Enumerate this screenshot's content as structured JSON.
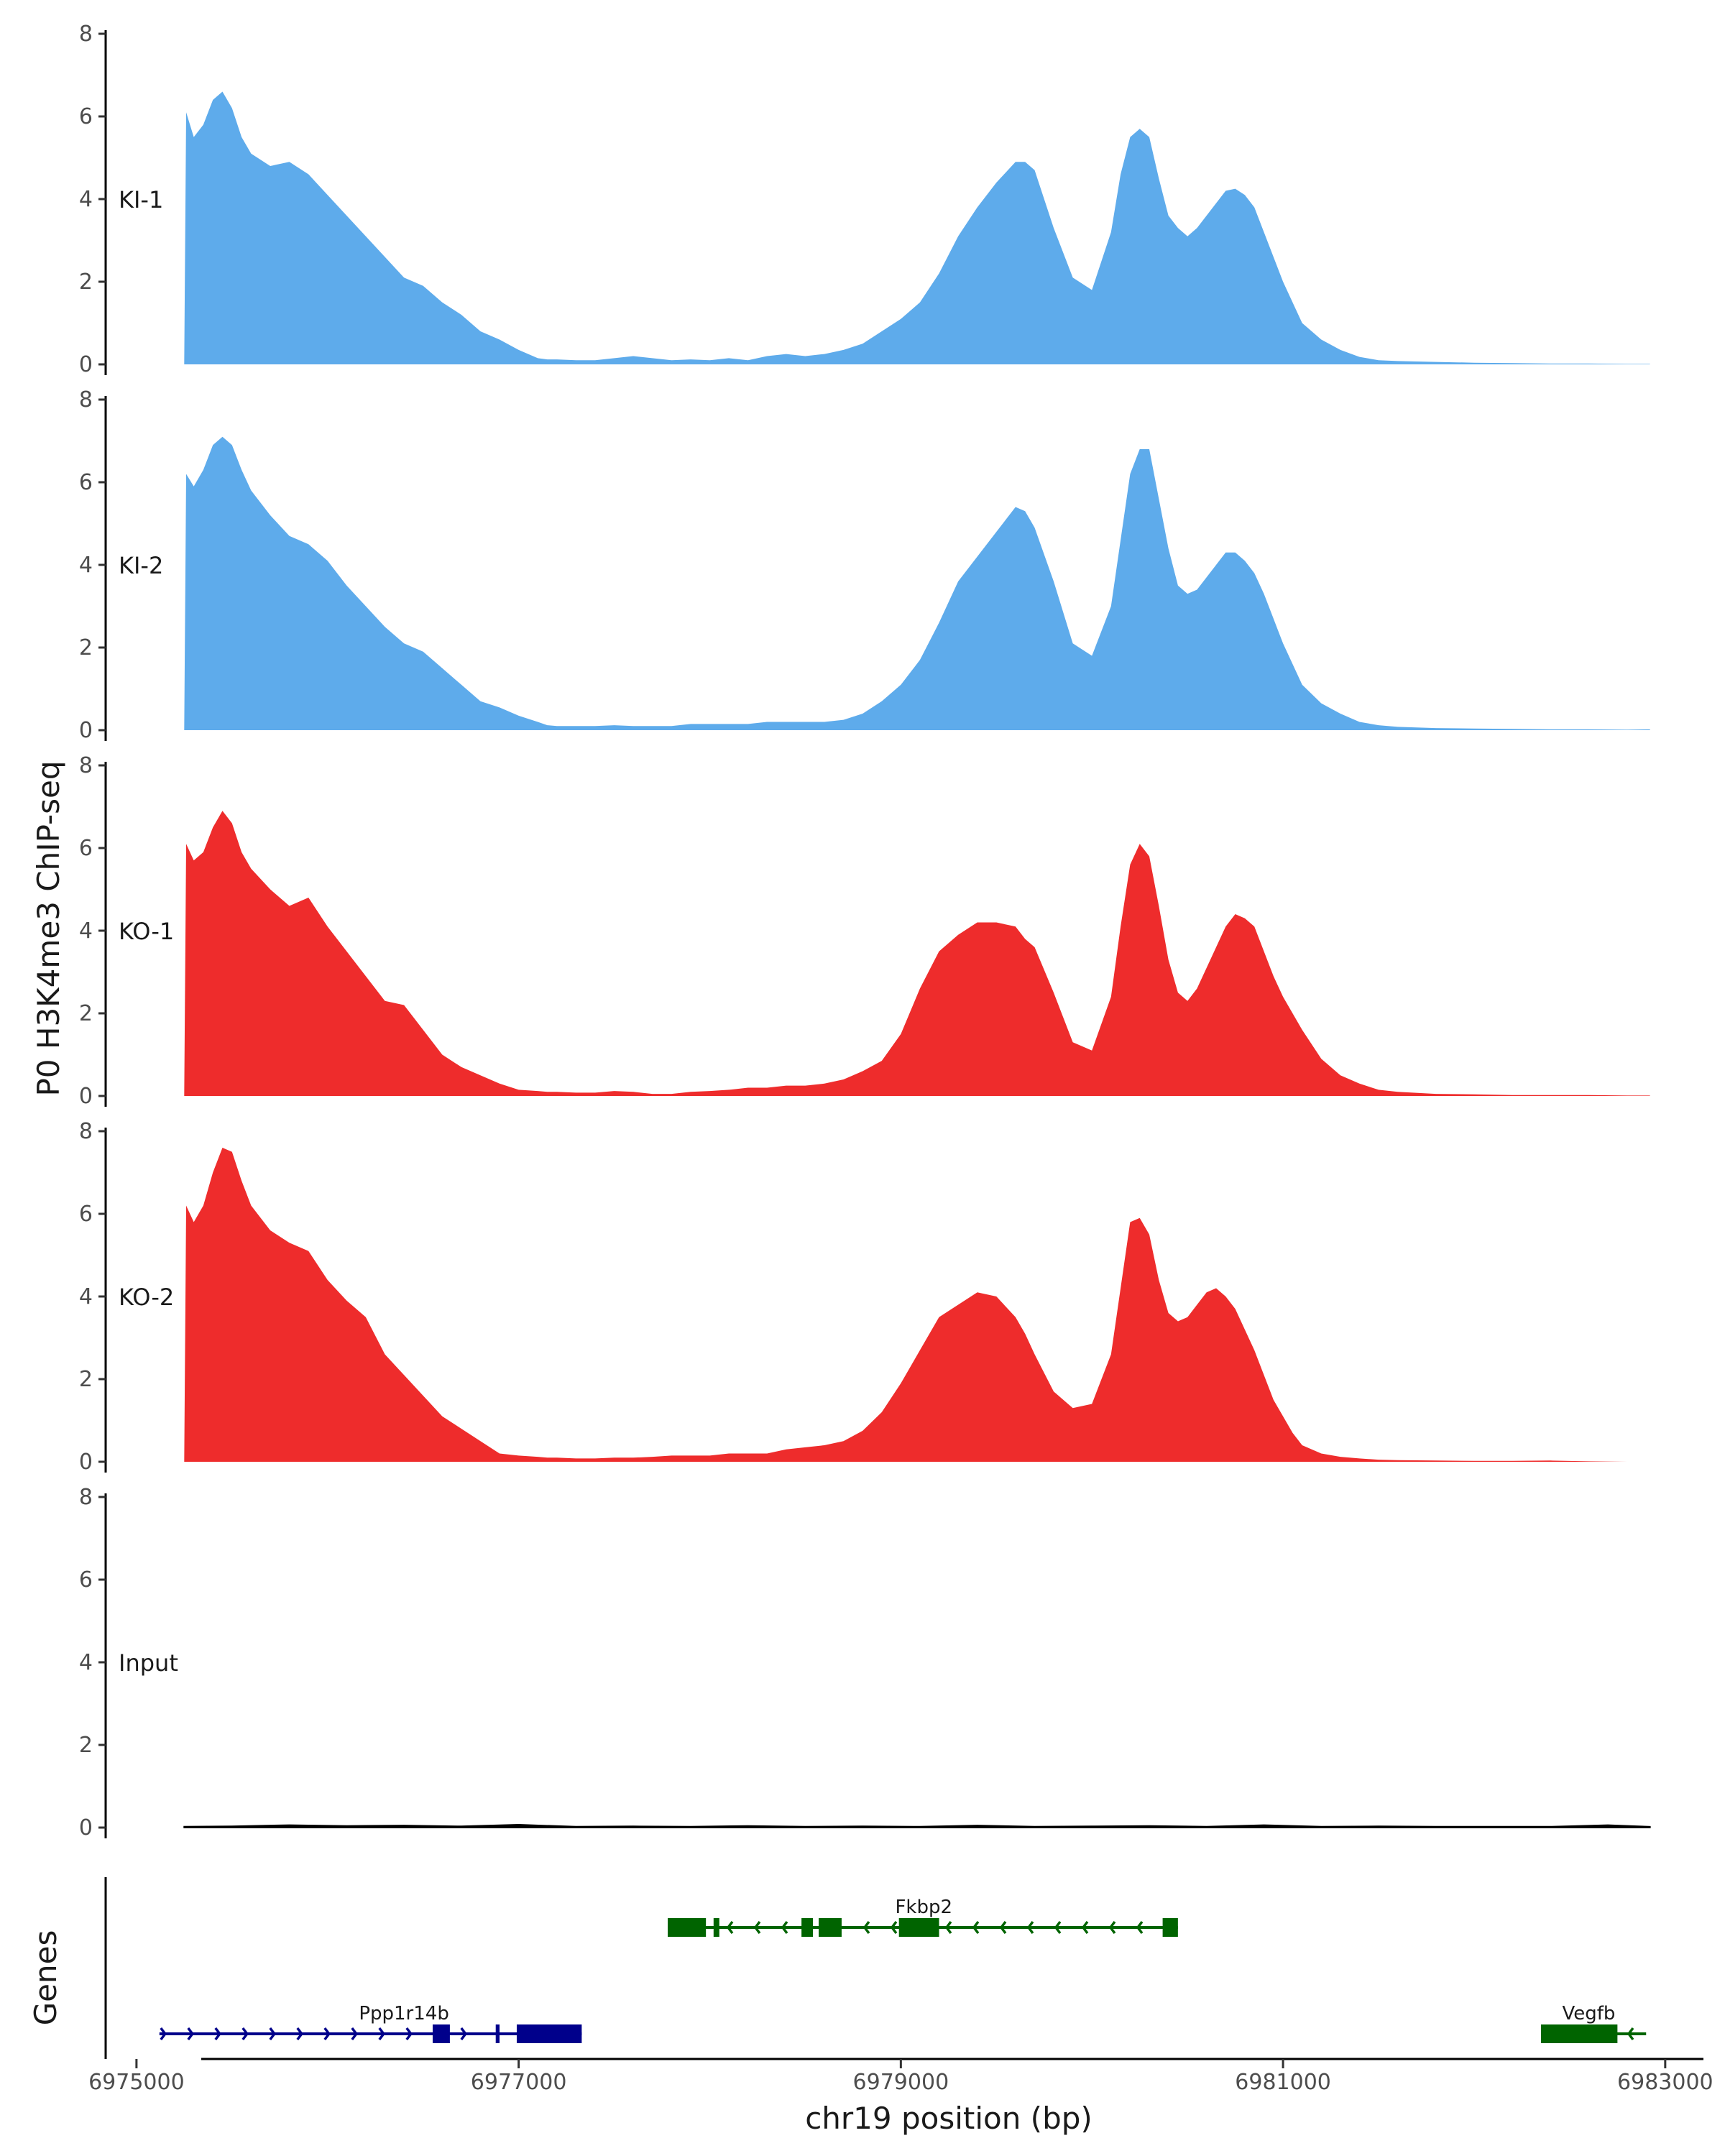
{
  "chart_data": {
    "type": "area",
    "title": "",
    "ylabel": "P0 H3K4me3 ChIP-seq",
    "xlabel": "chr19 position (bp)",
    "xlim": [
      6974850,
      6983200
    ],
    "ylim": [
      0,
      8
    ],
    "y_ticks": [
      "0",
      "2",
      "4",
      "6",
      "8"
    ],
    "x_ticks": [
      {
        "value": 6975000,
        "label": "6975000"
      },
      {
        "value": 6977000,
        "label": "6977000"
      },
      {
        "value": 6979000,
        "label": "6979000"
      },
      {
        "value": 6981000,
        "label": "6981000"
      },
      {
        "value": 6983000,
        "label": "6983000"
      }
    ],
    "grid": false,
    "legend": "none",
    "series": [
      {
        "name": "KI-1",
        "color": "#5EABEB",
        "x": [
          6975250,
          6975260,
          6975300,
          6975350,
          6975400,
          6975450,
          6975500,
          6975550,
          6975600,
          6975700,
          6975800,
          6975900,
          6976000,
          6976100,
          6976200,
          6976300,
          6976400,
          6976500,
          6976600,
          6976700,
          6976800,
          6976900,
          6977000,
          6977100,
          6977150,
          6977200,
          6977300,
          6977400,
          6977500,
          6977600,
          6977700,
          6977800,
          6977900,
          6978000,
          6978100,
          6978200,
          6978300,
          6978400,
          6978500,
          6978600,
          6978700,
          6978800,
          6978900,
          6979000,
          6979100,
          6979200,
          6979300,
          6979400,
          6979500,
          6979600,
          6979650,
          6979700,
          6979800,
          6979900,
          6980000,
          6980100,
          6980150,
          6980200,
          6980250,
          6980300,
          6980350,
          6980400,
          6980450,
          6980500,
          6980550,
          6980600,
          6980650,
          6980700,
          6980750,
          6980800,
          6980850,
          6980900,
          6980950,
          6981000,
          6981050,
          6981100,
          6981200,
          6981300,
          6981400,
          6981500,
          6981600,
          6981800,
          6982000,
          6982200,
          6982400,
          6982600,
          6982800,
          6982920
        ],
        "values": [
          0,
          6.1,
          5.5,
          5.8,
          6.4,
          6.6,
          6.2,
          5.5,
          5.1,
          4.8,
          4.9,
          4.6,
          4.1,
          3.6,
          3.1,
          2.6,
          2.1,
          1.9,
          1.5,
          1.2,
          0.8,
          0.6,
          0.35,
          0.15,
          0.12,
          0.12,
          0.1,
          0.1,
          0.15,
          0.2,
          0.15,
          0.1,
          0.12,
          0.1,
          0.15,
          0.1,
          0.2,
          0.25,
          0.2,
          0.25,
          0.35,
          0.5,
          0.8,
          1.1,
          1.5,
          2.2,
          3.1,
          3.8,
          4.4,
          4.9,
          4.9,
          4.7,
          3.3,
          2.1,
          1.8,
          3.2,
          4.6,
          5.5,
          5.7,
          5.5,
          4.5,
          3.6,
          3.3,
          3.1,
          3.3,
          3.6,
          3.9,
          4.2,
          4.25,
          4.1,
          3.8,
          3.2,
          2.6,
          2.0,
          1.5,
          1.0,
          0.6,
          0.35,
          0.18,
          0.1,
          0.08,
          0.06,
          0.04,
          0.03,
          0.02,
          0.02,
          0.01,
          0.01
        ]
      },
      {
        "name": "KI-2",
        "color": "#5EABEB",
        "x": [
          6975250,
          6975260,
          6975300,
          6975350,
          6975400,
          6975450,
          6975500,
          6975550,
          6975600,
          6975700,
          6975800,
          6975900,
          6976000,
          6976100,
          6976200,
          6976300,
          6976400,
          6976500,
          6976600,
          6976700,
          6976800,
          6976900,
          6977000,
          6977100,
          6977150,
          6977200,
          6977300,
          6977400,
          6977500,
          6977600,
          6977700,
          6977800,
          6977900,
          6978000,
          6978100,
          6978200,
          6978300,
          6978400,
          6978500,
          6978600,
          6978700,
          6978800,
          6978900,
          6979000,
          6979100,
          6979200,
          6979300,
          6979400,
          6979500,
          6979600,
          6979650,
          6979700,
          6979800,
          6979900,
          6980000,
          6980100,
          6980150,
          6980200,
          6980250,
          6980300,
          6980350,
          6980400,
          6980450,
          6980500,
          6980550,
          6980600,
          6980650,
          6980700,
          6980750,
          6980800,
          6980850,
          6980900,
          6980950,
          6981000,
          6981050,
          6981100,
          6981200,
          6981300,
          6981400,
          6981500,
          6981600,
          6981800,
          6982000,
          6982200,
          6982400,
          6982600,
          6982800,
          6982920
        ],
        "values": [
          0,
          6.2,
          5.9,
          6.3,
          6.9,
          7.1,
          6.9,
          6.3,
          5.8,
          5.2,
          4.7,
          4.5,
          4.1,
          3.5,
          3.0,
          2.5,
          2.1,
          1.9,
          1.5,
          1.1,
          0.7,
          0.55,
          0.35,
          0.2,
          0.12,
          0.1,
          0.1,
          0.1,
          0.12,
          0.1,
          0.1,
          0.1,
          0.15,
          0.15,
          0.15,
          0.15,
          0.2,
          0.2,
          0.2,
          0.2,
          0.25,
          0.4,
          0.7,
          1.1,
          1.7,
          2.6,
          3.6,
          4.2,
          4.8,
          5.4,
          5.3,
          4.9,
          3.6,
          2.1,
          1.8,
          3.0,
          4.6,
          6.2,
          6.8,
          6.8,
          5.6,
          4.4,
          3.5,
          3.3,
          3.4,
          3.7,
          4.0,
          4.3,
          4.3,
          4.1,
          3.8,
          3.3,
          2.7,
          2.1,
          1.6,
          1.1,
          0.65,
          0.4,
          0.2,
          0.12,
          0.08,
          0.05,
          0.04,
          0.03,
          0.02,
          0.02,
          0.01,
          0.02
        ]
      },
      {
        "name": "KO-1",
        "color": "#EE2C2C",
        "x": [
          6975250,
          6975260,
          6975300,
          6975350,
          6975400,
          6975450,
          6975500,
          6975550,
          6975600,
          6975700,
          6975800,
          6975900,
          6976000,
          6976100,
          6976200,
          6976300,
          6976400,
          6976500,
          6976600,
          6976700,
          6976800,
          6976900,
          6977000,
          6977100,
          6977150,
          6977200,
          6977300,
          6977400,
          6977500,
          6977600,
          6977700,
          6977800,
          6977900,
          6978000,
          6978100,
          6978200,
          6978300,
          6978400,
          6978500,
          6978600,
          6978700,
          6978800,
          6978900,
          6979000,
          6979100,
          6979200,
          6979300,
          6979400,
          6979500,
          6979600,
          6979650,
          6979700,
          6979800,
          6979900,
          6980000,
          6980100,
          6980150,
          6980200,
          6980250,
          6980300,
          6980350,
          6980400,
          6980450,
          6980500,
          6980550,
          6980600,
          6980650,
          6980700,
          6980750,
          6980800,
          6980850,
          6980900,
          6980950,
          6981000,
          6981050,
          6981100,
          6981200,
          6981300,
          6981400,
          6981500,
          6981600,
          6981800,
          6982000,
          6982200,
          6982400,
          6982600,
          6982800,
          6982920
        ],
        "values": [
          0,
          6.1,
          5.7,
          5.9,
          6.5,
          6.9,
          6.6,
          5.9,
          5.5,
          5.0,
          4.6,
          4.8,
          4.1,
          3.5,
          2.9,
          2.3,
          2.2,
          1.6,
          1.0,
          0.7,
          0.5,
          0.3,
          0.15,
          0.12,
          0.1,
          0.1,
          0.08,
          0.08,
          0.12,
          0.1,
          0.05,
          0.05,
          0.1,
          0.12,
          0.15,
          0.2,
          0.2,
          0.25,
          0.25,
          0.3,
          0.4,
          0.6,
          0.85,
          1.5,
          2.6,
          3.5,
          3.9,
          4.2,
          4.2,
          4.1,
          3.8,
          3.6,
          2.5,
          1.3,
          1.1,
          2.4,
          4.1,
          5.6,
          6.1,
          5.8,
          4.6,
          3.3,
          2.5,
          2.3,
          2.6,
          3.1,
          3.6,
          4.1,
          4.4,
          4.3,
          4.1,
          3.5,
          2.9,
          2.4,
          2.0,
          1.6,
          0.9,
          0.5,
          0.3,
          0.15,
          0.1,
          0.05,
          0.04,
          0.02,
          0.02,
          0.02,
          0.01,
          0.01
        ]
      },
      {
        "name": "KO-2",
        "color": "#EE2C2C",
        "x": [
          6975250,
          6975260,
          6975300,
          6975350,
          6975400,
          6975450,
          6975500,
          6975550,
          6975600,
          6975700,
          6975800,
          6975900,
          6976000,
          6976100,
          6976200,
          6976300,
          6976400,
          6976500,
          6976600,
          6976700,
          6976800,
          6976900,
          6977000,
          6977100,
          6977150,
          6977200,
          6977300,
          6977400,
          6977500,
          6977600,
          6977700,
          6977800,
          6977900,
          6978000,
          6978100,
          6978200,
          6978300,
          6978400,
          6978500,
          6978600,
          6978700,
          6978800,
          6978900,
          6979000,
          6979100,
          6979200,
          6979300,
          6979400,
          6979500,
          6979600,
          6979650,
          6979700,
          6979800,
          6979900,
          6980000,
          6980100,
          6980150,
          6980200,
          6980250,
          6980300,
          6980350,
          6980400,
          6980450,
          6980500,
          6980550,
          6980600,
          6980650,
          6980700,
          6980750,
          6980800,
          6980850,
          6980900,
          6980950,
          6981000,
          6981050,
          6981100,
          6981200,
          6981300,
          6981400,
          6981500,
          6981600,
          6981800,
          6982000,
          6982200,
          6982400,
          6982600,
          6982800,
          6982920
        ],
        "values": [
          0,
          6.2,
          5.8,
          6.2,
          7.0,
          7.6,
          7.5,
          6.8,
          6.2,
          5.6,
          5.3,
          5.1,
          4.4,
          3.9,
          3.5,
          2.6,
          2.1,
          1.6,
          1.1,
          0.8,
          0.5,
          0.2,
          0.15,
          0.12,
          0.1,
          0.1,
          0.08,
          0.08,
          0.1,
          0.1,
          0.12,
          0.15,
          0.15,
          0.15,
          0.2,
          0.2,
          0.2,
          0.3,
          0.35,
          0.4,
          0.5,
          0.75,
          1.2,
          1.9,
          2.7,
          3.5,
          3.8,
          4.1,
          4.0,
          3.5,
          3.1,
          2.6,
          1.7,
          1.3,
          1.4,
          2.6,
          4.2,
          5.8,
          5.9,
          5.5,
          4.4,
          3.6,
          3.4,
          3.5,
          3.8,
          4.1,
          4.2,
          4.0,
          3.7,
          3.2,
          2.7,
          2.1,
          1.5,
          1.1,
          0.7,
          0.4,
          0.2,
          0.12,
          0.08,
          0.05,
          0.04,
          0.03,
          0.02,
          0.02,
          0.03,
          0.01,
          0.0,
          0.0
        ]
      },
      {
        "name": "Input",
        "color": "#000000",
        "x": [
          6975250,
          6975500,
          6975800,
          6976100,
          6976400,
          6976700,
          6977000,
          6977300,
          6977600,
          6977900,
          6978200,
          6978500,
          6978800,
          6979100,
          6979400,
          6979700,
          6980000,
          6980300,
          6980600,
          6980900,
          6981200,
          6981500,
          6981800,
          6982100,
          6982400,
          6982700,
          6982920
        ],
        "values": [
          0.02,
          0.03,
          0.06,
          0.04,
          0.05,
          0.03,
          0.07,
          0.02,
          0.03,
          0.02,
          0.04,
          0.02,
          0.03,
          0.02,
          0.05,
          0.02,
          0.03,
          0.04,
          0.02,
          0.06,
          0.02,
          0.03,
          0.02,
          0.02,
          0.02,
          0.06,
          0.02
        ]
      }
    ],
    "genes_track": {
      "ylabel": "Genes",
      "genes": [
        {
          "name": "Fkbp2",
          "strand": "-",
          "color": "#006400",
          "start": 6977780,
          "end": 6980450,
          "exons": [
            [
              6977780,
              6977980
            ],
            [
              6978020,
              6978050
            ],
            [
              6978480,
              6978540
            ],
            [
              6978570,
              6978690
            ],
            [
              6978990,
              6979200
            ],
            [
              6980370,
              6980450
            ]
          ]
        },
        {
          "name": "Ppp1r14b",
          "strand": "+",
          "color": "#00008B",
          "start": 6975120,
          "end": 6977330,
          "exons": [
            [
              6976550,
              6976640
            ],
            [
              6976880,
              6976900
            ],
            [
              6976990,
              6977330
            ]
          ]
        },
        {
          "name": "Vegfb",
          "strand": "-",
          "color": "#006400",
          "start": 6982350,
          "end": 6982900,
          "exons": [
            [
              6982350,
              6982750
            ]
          ]
        }
      ]
    }
  }
}
